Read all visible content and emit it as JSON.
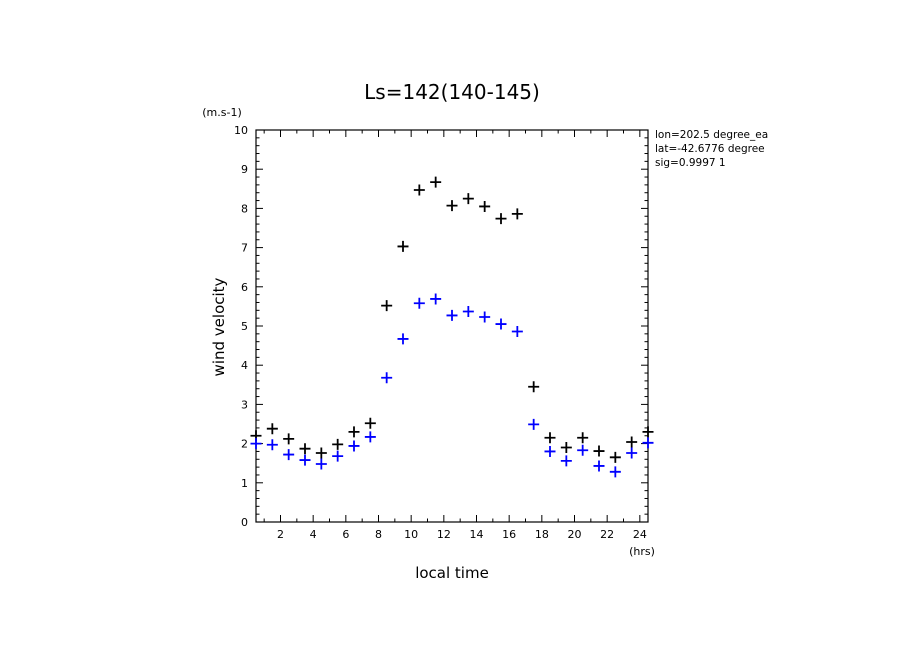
{
  "chart_data": {
    "type": "scatter",
    "title": "Ls=142(140-145)",
    "xlabel": "local time",
    "ylabel": "wind velocity",
    "x_unit": "(hrs)",
    "y_unit": "(m.s-1)",
    "xlim": [
      0.5,
      24.5
    ],
    "ylim": [
      0,
      10
    ],
    "x_ticks": [
      2,
      4,
      6,
      8,
      10,
      12,
      14,
      16,
      18,
      20,
      22,
      24
    ],
    "y_ticks": [
      0,
      1,
      2,
      3,
      4,
      5,
      6,
      7,
      8,
      9,
      10
    ],
    "grid": false,
    "annotations": [
      "lon=202.5 degree_ea",
      "lat=-42.6776 degree",
      "sig=0.9997 1"
    ],
    "series": [
      {
        "color": "#000000",
        "marker": "+",
        "x": [
          0.5,
          1.5,
          2.5,
          3.5,
          4.5,
          5.5,
          6.5,
          7.5,
          8.5,
          9.5,
          10.5,
          11.5,
          12.5,
          13.5,
          14.5,
          15.5,
          16.5,
          17.5,
          18.5,
          19.5,
          20.5,
          21.5,
          22.5,
          23.5,
          24.5
        ],
        "y": [
          2.2,
          2.38,
          2.12,
          1.87,
          1.76,
          1.98,
          2.3,
          2.52,
          5.52,
          7.03,
          8.47,
          8.67,
          8.07,
          8.25,
          8.05,
          7.74,
          7.86,
          3.45,
          2.15,
          1.9,
          2.15,
          1.81,
          1.65,
          2.04,
          2.3
        ]
      },
      {
        "color": "#0000ff",
        "marker": "+",
        "x": [
          0.5,
          1.5,
          2.5,
          3.5,
          4.5,
          5.5,
          6.5,
          7.5,
          8.5,
          9.5,
          10.5,
          11.5,
          12.5,
          13.5,
          14.5,
          15.5,
          16.5,
          17.5,
          18.5,
          19.5,
          20.5,
          21.5,
          22.5,
          23.5,
          24.5
        ],
        "y": [
          2.0,
          1.97,
          1.72,
          1.58,
          1.48,
          1.68,
          1.94,
          2.17,
          3.68,
          4.67,
          5.58,
          5.69,
          5.27,
          5.37,
          5.23,
          5.05,
          4.86,
          2.49,
          1.8,
          1.56,
          1.83,
          1.43,
          1.28,
          1.76,
          2.02
        ]
      }
    ]
  }
}
